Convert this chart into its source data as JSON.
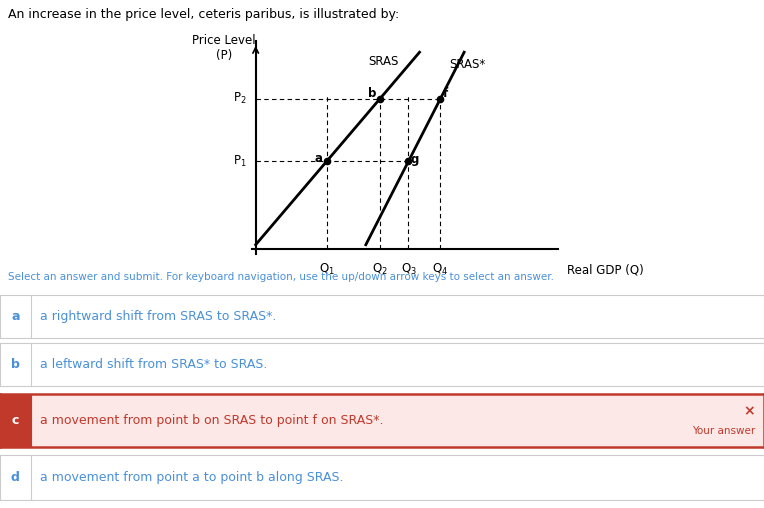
{
  "title": "An increase in the price level, ceteris paribus, is illustrated by:",
  "background_color": "#ffffff",
  "sras_color": "#000000",
  "line_width": 2.0,
  "p1": 0.38,
  "p2": 0.65,
  "q1": 0.2,
  "q2": 0.35,
  "q3": 0.43,
  "q4": 0.52,
  "sras_label": "SRAS",
  "sras_star_label": "SRAS*",
  "answer_options": [
    {
      "label": "a",
      "text": "a rightward shift from SRAS to SRAS*."
    },
    {
      "label": "b",
      "text": "a leftward shift from SRAS* to SRAS."
    },
    {
      "label": "c",
      "text": "a movement from point b on SRAS to point f on SRAS*."
    },
    {
      "label": "d",
      "text": "a movement from point a to point b along SRAS."
    }
  ],
  "selected_answer": "c",
  "selected_bg": "#fde8e8",
  "selected_border": "#c0392b",
  "selected_label_bg": "#c0392b",
  "selected_label_color": "#ffffff",
  "wrong_indicator": "×",
  "your_answer_text": "Your answer",
  "normal_label_color": "#4a90d9",
  "normal_text_color": "#4a90d9",
  "row_border_color": "#cccccc",
  "instruction_text": "Select an answer and submit. For keyboard navigation, use the up/down arrow keys to select an answer."
}
